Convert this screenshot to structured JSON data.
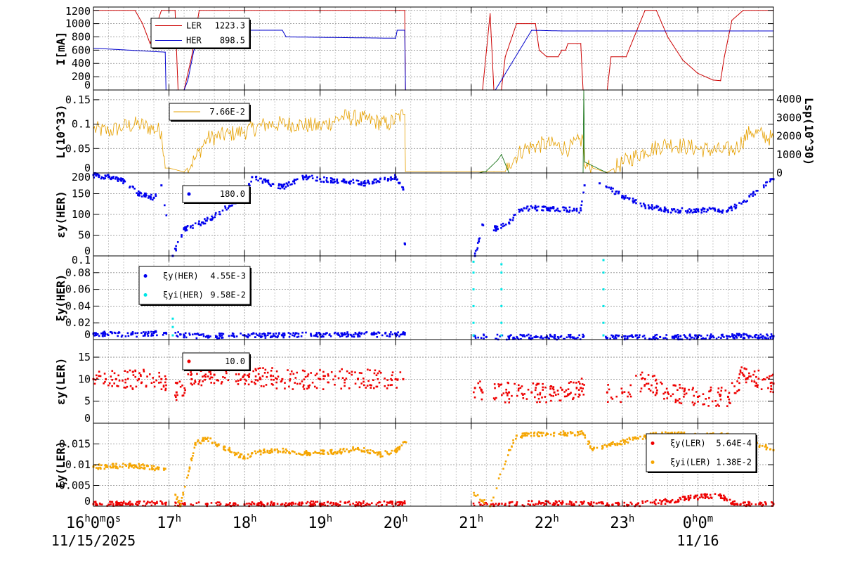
{
  "chart_data": [
    {
      "type": "line",
      "ylabel": "I[mA]",
      "ylim": [
        0,
        1250
      ],
      "yticks": [
        "0",
        "200",
        "400",
        "600",
        "800",
        "1000",
        "1200"
      ],
      "ytick_values": [
        0,
        200,
        400,
        600,
        800,
        1000,
        1200
      ],
      "legend": [
        {
          "name": "LER",
          "value": "1223.3",
          "color": "#cc0000"
        },
        {
          "name": "HER",
          "value": "898.5",
          "color": "#0000cc"
        }
      ],
      "series": [
        {
          "name": "LER",
          "color": "#cc0000",
          "x": [
            16.0,
            16.55,
            16.65,
            16.75,
            16.9,
            17.0,
            17.08,
            17.12,
            17.2,
            17.3,
            17.4,
            20.05,
            20.12,
            20.13,
            21.15,
            21.25,
            21.3,
            21.4,
            21.45,
            21.6,
            21.85,
            21.9,
            22.0,
            22.15,
            22.2,
            22.25,
            22.28,
            22.4,
            22.45,
            22.48,
            22.52,
            22.55,
            22.8,
            22.85,
            23.0,
            23.05,
            23.3,
            23.45,
            23.6,
            23.8,
            24.0,
            24.2,
            24.3,
            24.35,
            24.45,
            24.6,
            25.0
          ],
          "y": [
            1200,
            1200,
            1000,
            700,
            1200,
            1200,
            1200,
            0,
            0,
            500,
            1200,
            1200,
            1200,
            0,
            0,
            1150,
            0,
            0,
            500,
            1000,
            1000,
            600,
            500,
            500,
            600,
            600,
            700,
            700,
            700,
            0,
            0,
            0,
            0,
            500,
            500,
            500,
            1200,
            1200,
            800,
            450,
            250,
            150,
            140,
            500,
            1050,
            1200,
            1200
          ]
        },
        {
          "name": "HER",
          "color": "#0000cc",
          "x": [
            16.0,
            16.95,
            16.96,
            17.1,
            17.2,
            17.25,
            17.33,
            17.4,
            17.6,
            17.7,
            17.8,
            18.5,
            18.55,
            20.0,
            20.02,
            20.12,
            20.13,
            21.3,
            21.32,
            21.8,
            22.2,
            25.0
          ],
          "y": [
            630,
            570,
            0,
            0,
            0,
            150,
            600,
            700,
            700,
            650,
            900,
            900,
            800,
            780,
            900,
            900,
            0,
            0,
            0,
            900,
            890,
            890
          ]
        }
      ]
    },
    {
      "type": "line",
      "ylabel": "L(10^33)",
      "y2label": "Lsp(10^30)",
      "ylim": [
        0,
        0.17
      ],
      "y2lim": [
        0,
        4500
      ],
      "yticks": [
        "0",
        "0.05",
        "0.1",
        "0.15"
      ],
      "ytick_values": [
        0,
        0.05,
        0.1,
        0.15
      ],
      "y2ticks": [
        "0",
        "1000",
        "2000",
        "3000",
        "4000"
      ],
      "y2tick_values": [
        0,
        1000,
        2000,
        3000,
        4000
      ],
      "legend": [
        {
          "name": "",
          "value": "7.66E-2",
          "color": "#e6a000"
        }
      ],
      "series": [
        {
          "name": "",
          "color": "#e6a000",
          "x": [
            16.0,
            16.2,
            16.4,
            16.6,
            16.9,
            16.95,
            17.0,
            17.2,
            17.35,
            17.5,
            17.8,
            18.0,
            18.3,
            18.7,
            19.0,
            19.3,
            19.6,
            19.9,
            20.1,
            20.12,
            20.13,
            21.2,
            21.3,
            21.45,
            21.5,
            21.7,
            22.0,
            22.3,
            22.48,
            22.5,
            22.8,
            23.0,
            23.3,
            23.6,
            24.0,
            24.3,
            24.5,
            24.7,
            25.0
          ],
          "y": [
            0.09,
            0.085,
            0.095,
            0.1,
            0.085,
            0.01,
            0.01,
            0.002,
            0.03,
            0.07,
            0.08,
            0.085,
            0.1,
            0.1,
            0.095,
            0.115,
            0.11,
            0.1,
            0.12,
            0.12,
            0.003,
            0.003,
            0.003,
            0.003,
            0.02,
            0.05,
            0.06,
            0.05,
            0.07,
            0.015,
            0.001,
            0.02,
            0.045,
            0.06,
            0.05,
            0.045,
            0.05,
            0.085,
            0.07
          ]
        },
        {
          "name": "Lsp",
          "axis": "y2",
          "color": "#006600",
          "x": [
            21.1,
            21.2,
            21.35,
            21.4,
            21.5,
            22.48,
            22.49,
            22.5,
            22.8
          ],
          "y": [
            0,
            100,
            700,
            1000,
            0,
            0,
            4800,
            600,
            0
          ]
        }
      ]
    },
    {
      "type": "scatter",
      "ylabel": "εy(HER)",
      "ylim": [
        0,
        200
      ],
      "yticks": [
        "0",
        "50",
        "100",
        "150",
        "200"
      ],
      "ytick_values": [
        0,
        50,
        100,
        150,
        200
      ],
      "legend": [
        {
          "name": "",
          "value": "180.0",
          "color": "#0000ee"
        }
      ],
      "series": [
        {
          "name": "",
          "color": "#0000ee",
          "x": [
            16.0,
            16.2,
            16.4,
            16.6,
            16.8,
            16.9,
            17.05,
            17.2,
            17.5,
            17.8,
            18.0,
            18.1,
            18.5,
            18.8,
            19.0,
            19.3,
            19.6,
            19.9,
            20.0,
            20.05,
            20.1,
            20.12,
            21.05,
            21.1,
            21.15,
            21.35,
            21.5,
            21.65,
            21.7,
            22.0,
            22.45,
            22.5,
            22.7,
            23.0,
            23.3,
            23.6,
            24.0,
            24.4,
            24.6,
            25.0
          ],
          "y": [
            195,
            190,
            180,
            150,
            140,
            170,
            0,
            65,
            85,
            120,
            140,
            190,
            165,
            190,
            185,
            180,
            175,
            185,
            190,
            175,
            160,
            30,
            0,
            35,
            75,
            65,
            80,
            110,
            115,
            115,
            110,
            170,
            175,
            145,
            120,
            110,
            110,
            110,
            130,
            185
          ]
        }
      ]
    },
    {
      "type": "scatter",
      "ylabel": "ξy(HER)",
      "ylim": [
        0,
        0.1
      ],
      "yticks": [
        "0",
        "0.02",
        "0.04",
        "0.06",
        "0.08",
        "0.1"
      ],
      "ytick_values": [
        0,
        0.02,
        0.04,
        0.06,
        0.08,
        0.1
      ],
      "legend": [
        {
          "name": "ξy(HER)",
          "value": "4.55E-3",
          "color": "#0000ee"
        },
        {
          "name": "ξyi(HER)",
          "value": "9.58E-2",
          "color": "#00e6e6"
        }
      ],
      "series": [
        {
          "name": "ξy(HER)",
          "color": "#0000ee",
          "x": [
            16.0,
            16.5,
            16.95,
            17.2,
            17.5,
            18.0,
            18.5,
            19.0,
            19.5,
            20.0,
            20.12,
            21.05,
            21.2,
            21.5,
            22.0,
            22.48,
            22.8,
            23.5,
            24.0,
            24.5,
            25.0
          ],
          "y": [
            0.007,
            0.006,
            0.008,
            0.005,
            0.004,
            0.005,
            0.005,
            0.006,
            0.006,
            0.006,
            0.006,
            0.004,
            0.003,
            0.003,
            0.003,
            0.003,
            0.002,
            0.003,
            0.003,
            0.004,
            0.004
          ]
        },
        {
          "name": "ξyi(HER)",
          "color": "#00e6e6",
          "x": [
            17.05,
            17.05,
            17.05,
            17.05,
            17.05,
            21.03,
            21.03,
            21.03,
            21.03,
            21.03,
            21.03,
            21.4,
            21.4,
            21.4,
            21.4,
            21.4,
            21.4,
            22.75,
            22.75,
            22.75,
            22.75,
            22.75,
            22.75
          ],
          "y": [
            0.005,
            0.015,
            0.025,
            0.05,
            0.075,
            0.005,
            0.02,
            0.04,
            0.06,
            0.08,
            0.093,
            0.005,
            0.02,
            0.04,
            0.06,
            0.08,
            0.09,
            0.005,
            0.02,
            0.04,
            0.06,
            0.08,
            0.095
          ]
        }
      ]
    },
    {
      "type": "scatter",
      "ylabel": "εy(LER)",
      "ylim": [
        0,
        19
      ],
      "yticks": [
        "0",
        "5",
        "10",
        "15"
      ],
      "ytick_values": [
        0,
        5,
        10,
        15
      ],
      "legend": [
        {
          "name": "",
          "value": "10.0",
          "color": "#ee0000"
        }
      ],
      "series": [
        {
          "name": "",
          "color": "#ee0000",
          "x": [
            16.0,
            16.3,
            16.6,
            16.9,
            17.1,
            17.3,
            17.6,
            18.0,
            18.5,
            19.0,
            19.5,
            20.0,
            20.1,
            21.05,
            21.15,
            21.5,
            21.8,
            22.1,
            22.45,
            22.8,
            23.0,
            23.3,
            23.6,
            24.0,
            24.4,
            24.6,
            25.0
          ],
          "y": [
            10,
            10,
            10,
            10,
            7,
            10,
            11,
            11,
            10,
            10,
            10,
            10,
            10,
            8,
            7,
            7,
            7,
            7,
            8,
            7,
            7,
            10,
            7,
            6,
            6,
            11,
            9
          ]
        }
      ]
    },
    {
      "type": "scatter",
      "ylabel": "ξy(LER)",
      "ylim": [
        0,
        0.02
      ],
      "yticks": [
        "0",
        "0.005",
        "0.01",
        "0.015"
      ],
      "ytick_values": [
        0,
        0.005,
        0.01,
        0.015
      ],
      "legend": [
        {
          "name": "ξy(LER)",
          "value": "5.64E-4",
          "color": "#ee0000"
        },
        {
          "name": "ξyi(LER)",
          "value": "1.38E-2",
          "color": "#f5a500"
        }
      ],
      "series": [
        {
          "name": "ξy(LER)",
          "color": "#ee0000",
          "x": [
            16.0,
            16.5,
            16.95,
            17.15,
            17.5,
            18.0,
            18.5,
            19.0,
            19.5,
            20.0,
            20.12,
            21.3,
            21.6,
            21.9,
            22.2,
            22.48,
            22.8,
            23.2,
            23.6,
            23.9,
            24.1,
            24.3,
            24.5,
            25.0
          ],
          "y": [
            0.0005,
            0.0005,
            0.0007,
            0.0002,
            0.0004,
            0.0004,
            0.0005,
            0.0006,
            0.0006,
            0.0006,
            0.0007,
            0.0002,
            0.0005,
            0.0008,
            0.0007,
            0.0007,
            0.0003,
            0.0005,
            0.0012,
            0.002,
            0.0024,
            0.0025,
            0.0005,
            0.0005
          ]
        },
        {
          "name": "ξyi(LER)",
          "color": "#f5a500",
          "x": [
            16.0,
            16.5,
            16.95,
            17.15,
            17.35,
            17.5,
            17.8,
            18.0,
            18.1,
            18.4,
            18.8,
            19.2,
            19.5,
            19.8,
            20.0,
            20.12,
            21.25,
            21.5,
            21.6,
            22.0,
            22.48,
            22.6,
            22.9,
            23.3,
            23.6,
            24.0,
            24.4,
            24.6,
            25.0
          ],
          "y": [
            0.0095,
            0.0098,
            0.009,
            0.0,
            0.0152,
            0.0162,
            0.0135,
            0.0115,
            0.0128,
            0.0135,
            0.0128,
            0.013,
            0.014,
            0.0125,
            0.0132,
            0.0155,
            0.0,
            0.0135,
            0.017,
            0.0175,
            0.0175,
            0.0138,
            0.015,
            0.0168,
            0.0175,
            0.017,
            0.017,
            0.0162,
            0.0135
          ]
        }
      ]
    }
  ],
  "xaxis": {
    "range": [
      16.0,
      25.0
    ],
    "ticks": [
      {
        "value": 16,
        "main": "16",
        "sup": "h",
        "rest": [
          [
            "0",
            "m"
          ],
          [
            "0",
            "s"
          ]
        ]
      },
      {
        "value": 17,
        "main": "17",
        "sup": "h",
        "rest": []
      },
      {
        "value": 18,
        "main": "18",
        "sup": "h",
        "rest": []
      },
      {
        "value": 19,
        "main": "19",
        "sup": "h",
        "rest": []
      },
      {
        "value": 20,
        "main": "20",
        "sup": "h",
        "rest": []
      },
      {
        "value": 21,
        "main": "21",
        "sup": "h",
        "rest": []
      },
      {
        "value": 22,
        "main": "22",
        "sup": "h",
        "rest": []
      },
      {
        "value": 23,
        "main": "23",
        "sup": "h",
        "rest": []
      },
      {
        "value": 24,
        "main": "0",
        "sup": "h",
        "rest": [
          [
            "0",
            "m"
          ]
        ]
      }
    ],
    "dates": [
      {
        "value": 16,
        "text": "11/15/2025"
      },
      {
        "value": 24,
        "text": "11/16"
      }
    ]
  }
}
